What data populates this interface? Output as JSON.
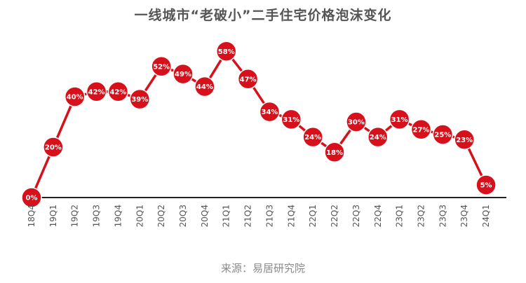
{
  "chart_data": {
    "type": "line",
    "title": "一线城市“老破小”二手住宅价格泡沫变化",
    "source": "来源：易居研究院",
    "categories": [
      "18Q4",
      "19Q1",
      "19Q2",
      "19Q3",
      "19Q4",
      "20Q1",
      "20Q2",
      "20Q3",
      "20Q4",
      "21Q1",
      "21Q2",
      "21Q3",
      "21Q4",
      "22Q1",
      "22Q2",
      "22Q3",
      "22Q4",
      "23Q1",
      "23Q2",
      "23Q3",
      "23Q4",
      "24Q1"
    ],
    "series": [
      {
        "values": [
          0,
          20,
          40,
          42,
          42,
          39,
          52,
          49,
          44,
          58,
          47,
          34,
          31,
          24,
          18,
          30,
          24,
          31,
          27,
          25,
          23,
          5
        ],
        "labels": [
          "0%",
          "20%",
          "40%",
          "42%",
          "42%",
          "39%",
          "52%",
          "49%",
          "44%",
          "58%",
          "47%",
          "34%",
          "31%",
          "24%",
          "18%",
          "30%",
          "24%",
          "31%",
          "27%",
          "25%",
          "23%",
          "5%"
        ]
      }
    ],
    "ylim": [
      0,
      60
    ],
    "grid": false,
    "colors": {
      "line": "#d6111b",
      "marker": "#d6111b",
      "marker_text": "#ffffff",
      "baseline": "#222222",
      "tick_text": "#555555"
    }
  }
}
